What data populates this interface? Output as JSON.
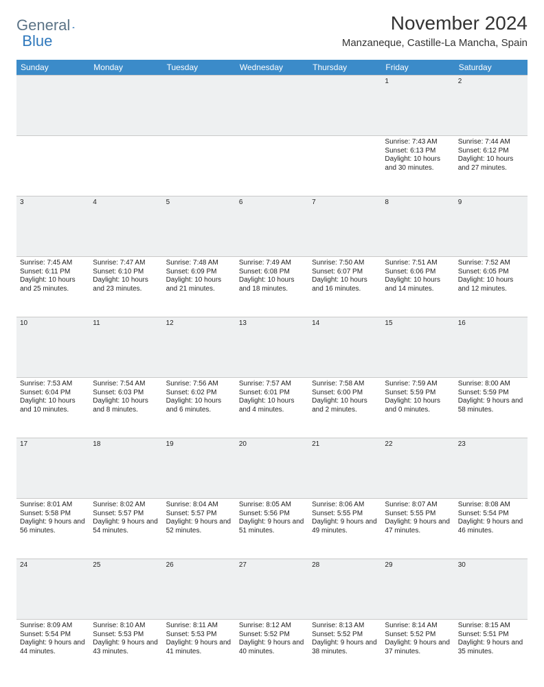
{
  "brand": {
    "part1": "General",
    "part2": "Blue"
  },
  "title": "November 2024",
  "location": "Manzaneque, Castille-La Mancha, Spain",
  "colors": {
    "header_bg": "#3b8bc9",
    "header_text": "#ffffff",
    "daynum_bg": "#eef0f1",
    "border": "#c9c9c9",
    "brand_gray": "#5b7386",
    "brand_blue": "#2f78bc"
  },
  "weekdays": [
    "Sunday",
    "Monday",
    "Tuesday",
    "Wednesday",
    "Thursday",
    "Friday",
    "Saturday"
  ],
  "weeks": [
    [
      null,
      null,
      null,
      null,
      null,
      {
        "n": "1",
        "sr": "7:43 AM",
        "ss": "6:13 PM",
        "dl": "10 hours and 30 minutes."
      },
      {
        "n": "2",
        "sr": "7:44 AM",
        "ss": "6:12 PM",
        "dl": "10 hours and 27 minutes."
      }
    ],
    [
      {
        "n": "3",
        "sr": "7:45 AM",
        "ss": "6:11 PM",
        "dl": "10 hours and 25 minutes."
      },
      {
        "n": "4",
        "sr": "7:47 AM",
        "ss": "6:10 PM",
        "dl": "10 hours and 23 minutes."
      },
      {
        "n": "5",
        "sr": "7:48 AM",
        "ss": "6:09 PM",
        "dl": "10 hours and 21 minutes."
      },
      {
        "n": "6",
        "sr": "7:49 AM",
        "ss": "6:08 PM",
        "dl": "10 hours and 18 minutes."
      },
      {
        "n": "7",
        "sr": "7:50 AM",
        "ss": "6:07 PM",
        "dl": "10 hours and 16 minutes."
      },
      {
        "n": "8",
        "sr": "7:51 AM",
        "ss": "6:06 PM",
        "dl": "10 hours and 14 minutes."
      },
      {
        "n": "9",
        "sr": "7:52 AM",
        "ss": "6:05 PM",
        "dl": "10 hours and 12 minutes."
      }
    ],
    [
      {
        "n": "10",
        "sr": "7:53 AM",
        "ss": "6:04 PM",
        "dl": "10 hours and 10 minutes."
      },
      {
        "n": "11",
        "sr": "7:54 AM",
        "ss": "6:03 PM",
        "dl": "10 hours and 8 minutes."
      },
      {
        "n": "12",
        "sr": "7:56 AM",
        "ss": "6:02 PM",
        "dl": "10 hours and 6 minutes."
      },
      {
        "n": "13",
        "sr": "7:57 AM",
        "ss": "6:01 PM",
        "dl": "10 hours and 4 minutes."
      },
      {
        "n": "14",
        "sr": "7:58 AM",
        "ss": "6:00 PM",
        "dl": "10 hours and 2 minutes."
      },
      {
        "n": "15",
        "sr": "7:59 AM",
        "ss": "5:59 PM",
        "dl": "10 hours and 0 minutes."
      },
      {
        "n": "16",
        "sr": "8:00 AM",
        "ss": "5:59 PM",
        "dl": "9 hours and 58 minutes."
      }
    ],
    [
      {
        "n": "17",
        "sr": "8:01 AM",
        "ss": "5:58 PM",
        "dl": "9 hours and 56 minutes."
      },
      {
        "n": "18",
        "sr": "8:02 AM",
        "ss": "5:57 PM",
        "dl": "9 hours and 54 minutes."
      },
      {
        "n": "19",
        "sr": "8:04 AM",
        "ss": "5:57 PM",
        "dl": "9 hours and 52 minutes."
      },
      {
        "n": "20",
        "sr": "8:05 AM",
        "ss": "5:56 PM",
        "dl": "9 hours and 51 minutes."
      },
      {
        "n": "21",
        "sr": "8:06 AM",
        "ss": "5:55 PM",
        "dl": "9 hours and 49 minutes."
      },
      {
        "n": "22",
        "sr": "8:07 AM",
        "ss": "5:55 PM",
        "dl": "9 hours and 47 minutes."
      },
      {
        "n": "23",
        "sr": "8:08 AM",
        "ss": "5:54 PM",
        "dl": "9 hours and 46 minutes."
      }
    ],
    [
      {
        "n": "24",
        "sr": "8:09 AM",
        "ss": "5:54 PM",
        "dl": "9 hours and 44 minutes."
      },
      {
        "n": "25",
        "sr": "8:10 AM",
        "ss": "5:53 PM",
        "dl": "9 hours and 43 minutes."
      },
      {
        "n": "26",
        "sr": "8:11 AM",
        "ss": "5:53 PM",
        "dl": "9 hours and 41 minutes."
      },
      {
        "n": "27",
        "sr": "8:12 AM",
        "ss": "5:52 PM",
        "dl": "9 hours and 40 minutes."
      },
      {
        "n": "28",
        "sr": "8:13 AM",
        "ss": "5:52 PM",
        "dl": "9 hours and 38 minutes."
      },
      {
        "n": "29",
        "sr": "8:14 AM",
        "ss": "5:52 PM",
        "dl": "9 hours and 37 minutes."
      },
      {
        "n": "30",
        "sr": "8:15 AM",
        "ss": "5:51 PM",
        "dl": "9 hours and 35 minutes."
      }
    ]
  ],
  "labels": {
    "sunrise": "Sunrise:",
    "sunset": "Sunset:",
    "daylight": "Daylight:"
  }
}
